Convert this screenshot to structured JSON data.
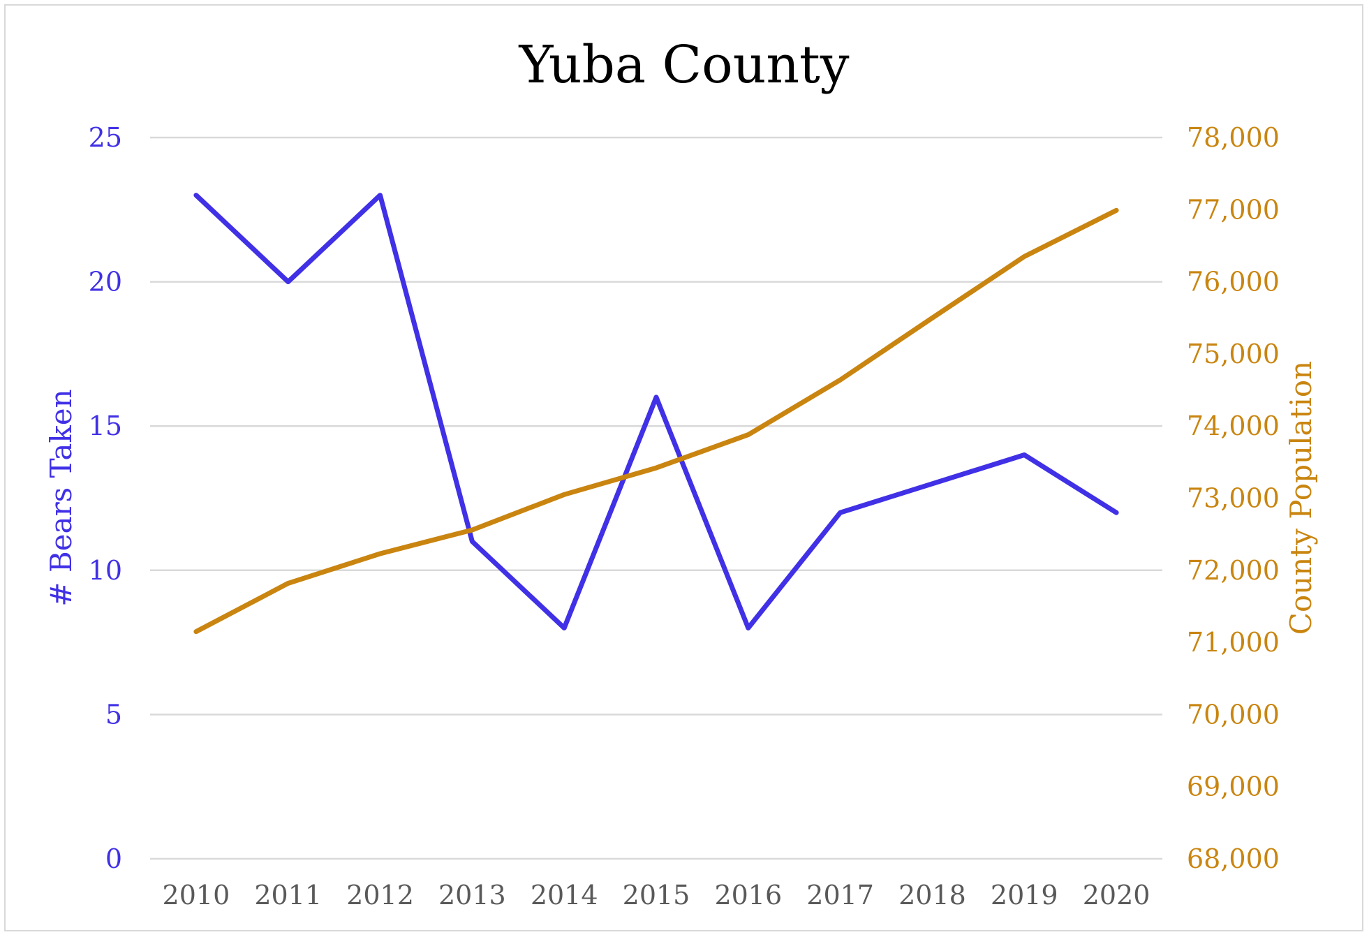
{
  "chart_data": {
    "type": "line",
    "title": "Yuba County",
    "categories": [
      "2010",
      "2011",
      "2012",
      "2013",
      "2014",
      "2015",
      "2016",
      "2017",
      "2018",
      "2019",
      "2020"
    ],
    "series": [
      {
        "name": "# Bears Taken",
        "axis": "left",
        "color": "#4030e6",
        "values": [
          23,
          20,
          23,
          11,
          8,
          16,
          8,
          12,
          13,
          14,
          12
        ]
      },
      {
        "name": "County Population",
        "axis": "right",
        "color": "#c98510",
        "values": [
          71150,
          71820,
          72230,
          72560,
          73050,
          73420,
          73880,
          74640,
          75500,
          76350,
          76990
        ]
      }
    ],
    "y_left": {
      "label": "# Bears Taken",
      "min": 0,
      "max": 25,
      "ticks": [
        0,
        5,
        10,
        15,
        20,
        25
      ],
      "tick_labels": [
        "0",
        "5",
        "10",
        "15",
        "20",
        "25"
      ],
      "color": "#4030e6"
    },
    "y_right": {
      "label": "County Population",
      "min": 68000,
      "max": 78000,
      "ticks": [
        68000,
        69000,
        70000,
        71000,
        72000,
        73000,
        74000,
        75000,
        76000,
        77000,
        78000
      ],
      "tick_labels": [
        "68,000",
        "69,000",
        "70,000",
        "71,000",
        "72,000",
        "73,000",
        "74,000",
        "75,000",
        "76,000",
        "77,000",
        "78,000"
      ],
      "color": "#c98510"
    },
    "grid": true,
    "legend": "none"
  }
}
